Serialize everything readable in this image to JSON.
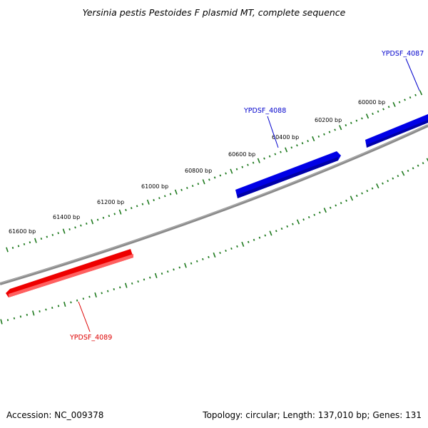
{
  "title": "Yersinia pestis Pestoides F plasmid MT, complete sequence",
  "footer": {
    "accession": "Accession: NC_009378",
    "summary": "Topology: circular; Length: 137,010 bp; Genes: 131"
  },
  "colors": {
    "backbone": "#808080",
    "tick": "#1f7a1f",
    "forward_gene": "#0000ee",
    "reverse_gene": "#ee0000",
    "forward_label": "#0000cc",
    "reverse_label": "#dd0000"
  },
  "ruler_labels": [
    "61600 bp",
    "61400 bp",
    "61200 bp",
    "61000 bp",
    "60800 bp",
    "60600 bp",
    "60400 bp",
    "60200 bp",
    "60000 bp"
  ],
  "genes": [
    {
      "name": "YPDSF_4087",
      "strand": "forward"
    },
    {
      "name": "YPDSF_4088",
      "strand": "forward"
    },
    {
      "name": "YPDSF_4089",
      "strand": "reverse"
    }
  ]
}
